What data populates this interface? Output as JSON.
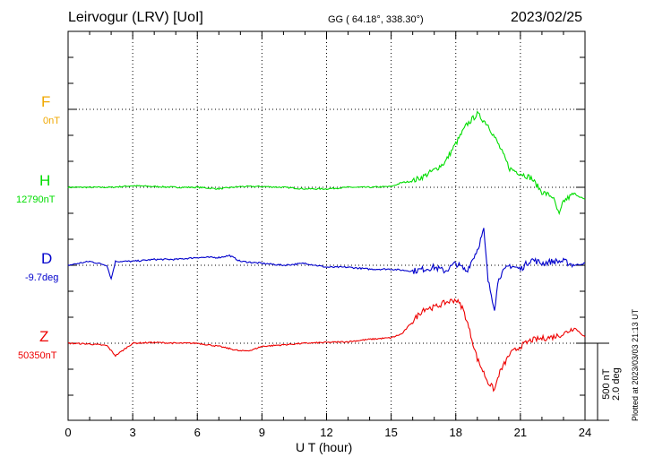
{
  "header": {
    "station": "Leirvogur (LRV)  [UoI]",
    "coords": "GG ( 64.18°, 338.30°)",
    "date": "2023/02/25"
  },
  "components": [
    {
      "letter": "F",
      "baseline": "0nT",
      "color": "#f0a800"
    },
    {
      "letter": "H",
      "baseline": "12790nT",
      "color": "#00dd00"
    },
    {
      "letter": "D",
      "baseline": "-9.7deg",
      "color": "#0000cc"
    },
    {
      "letter": "Z",
      "baseline": "50350nT",
      "color": "#ee0000"
    }
  ],
  "scale_bar": {
    "line1": "500 nT",
    "line2": "2.0 deg"
  },
  "footer": {
    "plotted": "Plotted at 2023/03/03 21:13 UT"
  },
  "chart_data": {
    "type": "line",
    "xlabel": "U T (hour)",
    "xlim": [
      0,
      24
    ],
    "x_ticks": [
      "0",
      "3",
      "6",
      "9",
      "12",
      "15",
      "18",
      "21",
      "24"
    ],
    "grid": true,
    "series": [
      {
        "name": "H",
        "baseline_label": "12790nT",
        "color": "#00dd00",
        "x": [
          0,
          1,
          2,
          3,
          4,
          5,
          6,
          7,
          8,
          9,
          10,
          11,
          12,
          13,
          14,
          15,
          15.5,
          16,
          16.5,
          17,
          17.5,
          18,
          18.5,
          19,
          19.5,
          20,
          20.5,
          21,
          21.5,
          22,
          22.5,
          22.8,
          23,
          23.5,
          24
        ],
        "values": [
          0,
          0,
          0,
          10,
          5,
          0,
          0,
          -10,
          5,
          5,
          0,
          -10,
          -10,
          0,
          0,
          5,
          30,
          40,
          70,
          110,
          160,
          280,
          400,
          470,
          400,
          270,
          120,
          90,
          60,
          -30,
          -60,
          -180,
          -90,
          -40,
          -80
        ]
      },
      {
        "name": "D",
        "baseline_label": "-9.7deg",
        "color": "#0000cc",
        "x": [
          0,
          1,
          1.8,
          2,
          2.2,
          3,
          4,
          5,
          6,
          7,
          7.5,
          8,
          9,
          10,
          11,
          12,
          13,
          14,
          15,
          16,
          16.5,
          17,
          17.5,
          18,
          18.5,
          19,
          19.3,
          19.5,
          19.8,
          20,
          20.5,
          21,
          21.5,
          22,
          22.5,
          23,
          23.5,
          24
        ],
        "values": [
          0,
          0.1,
          0.0,
          -0.35,
          0.1,
          0.1,
          0.15,
          0.15,
          0.2,
          0.2,
          0.25,
          0.1,
          0.05,
          0.0,
          0.05,
          -0.05,
          -0.05,
          -0.1,
          -0.1,
          -0.15,
          -0.1,
          -0.05,
          -0.15,
          0.05,
          -0.15,
          0.4,
          0.9,
          -0.4,
          -1.1,
          -0.3,
          0.0,
          -0.1,
          0.15,
          0.05,
          0.1,
          0.1,
          0.0,
          0.05
        ]
      },
      {
        "name": "Z",
        "baseline_label": "50350nT",
        "color": "#ee0000",
        "x": [
          0,
          1,
          1.8,
          2.2,
          2.7,
          3,
          4,
          5,
          6,
          7,
          7.5,
          8,
          8.5,
          9,
          10,
          11,
          12,
          13,
          14,
          15,
          15.5,
          16,
          16.5,
          17,
          17.5,
          18,
          18.3,
          18.5,
          19,
          19.5,
          19.8,
          20,
          20.5,
          21,
          21.5,
          22,
          22.5,
          23,
          23.5,
          24
        ],
        "values": [
          0,
          -5,
          -15,
          -80,
          -30,
          0,
          5,
          0,
          0,
          -20,
          -35,
          -50,
          -45,
          -20,
          -10,
          0,
          5,
          10,
          25,
          35,
          60,
          140,
          220,
          230,
          260,
          280,
          230,
          150,
          -100,
          -250,
          -300,
          -200,
          -70,
          -20,
          20,
          30,
          40,
          60,
          100,
          40
        ]
      }
    ]
  }
}
